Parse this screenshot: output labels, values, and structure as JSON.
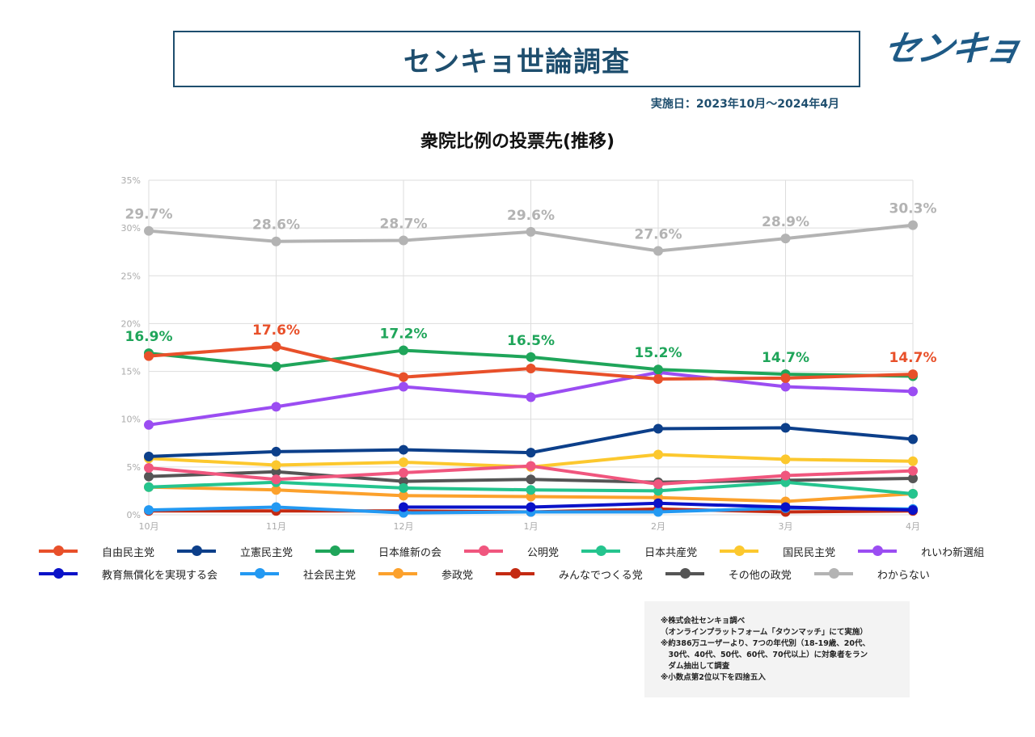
{
  "header": {
    "title": "センキョ世論調査",
    "logo_text": "センキョ",
    "date_text": "実施日：2023年10月〜2024年4月"
  },
  "notes": [
    "※株式会社センキョ調べ",
    "（オンラインプラットフォーム「タウンマッチ」にて実施）",
    "※約386万ユーザーより、7つの年代別（18-19歳、20代、",
    "　30代、40代、50代、60代、70代以上）に対象者をラン",
    "　ダム抽出して調査",
    "※小数点第2位以下を四捨五入"
  ],
  "chart_data": {
    "type": "line",
    "title": "衆院比例の投票先(推移)",
    "xlabel": "",
    "ylabel": "",
    "categories": [
      "10月",
      "11月",
      "12月",
      "1月",
      "2月",
      "3月",
      "4月"
    ],
    "ylim": [
      0,
      35
    ],
    "yticks": [
      0,
      5,
      10,
      15,
      20,
      25,
      30,
      35
    ],
    "ytick_labels": [
      "0%",
      "5%",
      "10%",
      "15%",
      "20%",
      "25%",
      "30%",
      "35%"
    ],
    "grid": true,
    "legend_position": "bottom",
    "series": [
      {
        "name": "自由民主党",
        "color": "#e8502a",
        "values": [
          16.6,
          17.6,
          14.4,
          15.3,
          14.2,
          14.3,
          14.7
        ]
      },
      {
        "name": "立憲民主党",
        "color": "#0c3f8a",
        "values": [
          6.1,
          6.6,
          6.8,
          6.5,
          9.0,
          9.1,
          7.9
        ]
      },
      {
        "name": "日本維新の会",
        "color": "#1fa55a",
        "values": [
          16.9,
          15.5,
          17.2,
          16.5,
          15.2,
          14.7,
          14.5
        ]
      },
      {
        "name": "公明党",
        "color": "#f0567e",
        "values": [
          4.9,
          3.7,
          4.4,
          5.1,
          3.2,
          4.1,
          4.6
        ]
      },
      {
        "name": "日本共産党",
        "color": "#25c48e",
        "values": [
          2.9,
          3.4,
          2.8,
          2.6,
          2.5,
          3.4,
          2.2
        ]
      },
      {
        "name": "国民民主党",
        "color": "#fcc82e",
        "values": [
          5.9,
          5.2,
          5.5,
          5.0,
          6.3,
          5.8,
          5.6
        ]
      },
      {
        "name": "れいわ新選組",
        "color": "#9b4df2",
        "values": [
          9.4,
          11.3,
          13.4,
          12.3,
          14.9,
          13.4,
          12.9
        ]
      },
      {
        "name": "教育無償化を実現する会",
        "color": "#0a12c8",
        "values": [
          null,
          null,
          0.8,
          0.8,
          1.2,
          0.8,
          0.5
        ]
      },
      {
        "name": "社会民主党",
        "color": "#2399f2",
        "values": [
          0.5,
          0.8,
          0.2,
          0.3,
          0.3,
          0.7,
          0.6
        ]
      },
      {
        "name": "参政党",
        "color": "#fca12c",
        "values": [
          2.9,
          2.6,
          2.0,
          1.9,
          1.8,
          1.4,
          2.2
        ]
      },
      {
        "name": "みんなでつくる党",
        "color": "#c42a12",
        "values": [
          0.4,
          0.4,
          0.4,
          0.3,
          0.6,
          0.3,
          0.4
        ]
      },
      {
        "name": "その他の政党",
        "color": "#555555",
        "values": [
          4.0,
          4.5,
          3.5,
          3.7,
          3.4,
          3.6,
          3.8
        ]
      },
      {
        "name": "わからない",
        "color": "#b3b3b3",
        "values": [
          29.7,
          28.6,
          28.7,
          29.6,
          27.6,
          28.9,
          30.3
        ]
      }
    ],
    "annotations": [
      {
        "series": "わからない",
        "index": 0,
        "text": "29.7%",
        "color": "#b3b3b3"
      },
      {
        "series": "わからない",
        "index": 1,
        "text": "28.6%",
        "color": "#b3b3b3"
      },
      {
        "series": "わからない",
        "index": 2,
        "text": "28.7%",
        "color": "#b3b3b3"
      },
      {
        "series": "わからない",
        "index": 3,
        "text": "29.6%",
        "color": "#b3b3b3"
      },
      {
        "series": "わからない",
        "index": 4,
        "text": "27.6%",
        "color": "#b3b3b3"
      },
      {
        "series": "わからない",
        "index": 5,
        "text": "28.9%",
        "color": "#b3b3b3"
      },
      {
        "series": "わからない",
        "index": 6,
        "text": "30.3%",
        "color": "#b3b3b3"
      },
      {
        "series": "日本維新の会",
        "index": 0,
        "text": "16.9%",
        "color": "#1fa55a"
      },
      {
        "series": "自由民主党",
        "index": 1,
        "text": "17.6%",
        "color": "#e8502a"
      },
      {
        "series": "日本維新の会",
        "index": 2,
        "text": "17.2%",
        "color": "#1fa55a"
      },
      {
        "series": "日本維新の会",
        "index": 3,
        "text": "16.5%",
        "color": "#1fa55a"
      },
      {
        "series": "日本維新の会",
        "index": 4,
        "text": "15.2%",
        "color": "#1fa55a"
      },
      {
        "series": "日本維新の会",
        "index": 5,
        "text": "14.7%",
        "color": "#1fa55a"
      },
      {
        "series": "自由民主党",
        "index": 6,
        "text": "14.7%",
        "color": "#e8502a"
      }
    ]
  }
}
